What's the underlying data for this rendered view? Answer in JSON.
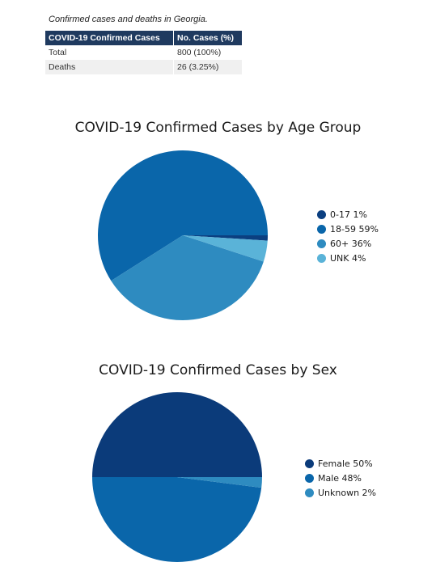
{
  "caption": "Confirmed cases and deaths in Georgia.",
  "table": {
    "headers": [
      "COVID-19 Confirmed Cases",
      "No. Cases (%)"
    ],
    "rows": [
      [
        "Total",
        "800 (100%)"
      ],
      [
        "Deaths",
        "26 (3.25%)"
      ]
    ]
  },
  "chart_data": [
    {
      "type": "pie",
      "title": "COVID-19 Confirmed Cases by Age Group",
      "legend_position": "right",
      "slices": [
        {
          "label": "0-17",
          "value": 1,
          "legend": "0-17 1%",
          "color": "#0b3f80"
        },
        {
          "label": "18-59",
          "value": 59,
          "legend": "18-59 59%",
          "color": "#0a66aa"
        },
        {
          "label": "60+",
          "value": 36,
          "legend": "60+ 36%",
          "color": "#2e8bc0"
        },
        {
          "label": "UNK",
          "value": 4,
          "legend": "UNK 4%",
          "color": "#5ab3d8"
        }
      ]
    },
    {
      "type": "pie",
      "title": "COVID-19 Confirmed Cases by Sex",
      "legend_position": "right",
      "slices": [
        {
          "label": "Female",
          "value": 50,
          "legend": "Female 50%",
          "color": "#0b3b7a"
        },
        {
          "label": "Male",
          "value": 48,
          "legend": "Male 48%",
          "color": "#0a66aa"
        },
        {
          "label": "Unknown",
          "value": 2,
          "legend": "Unknown 2%",
          "color": "#2e8bc0"
        }
      ]
    }
  ]
}
